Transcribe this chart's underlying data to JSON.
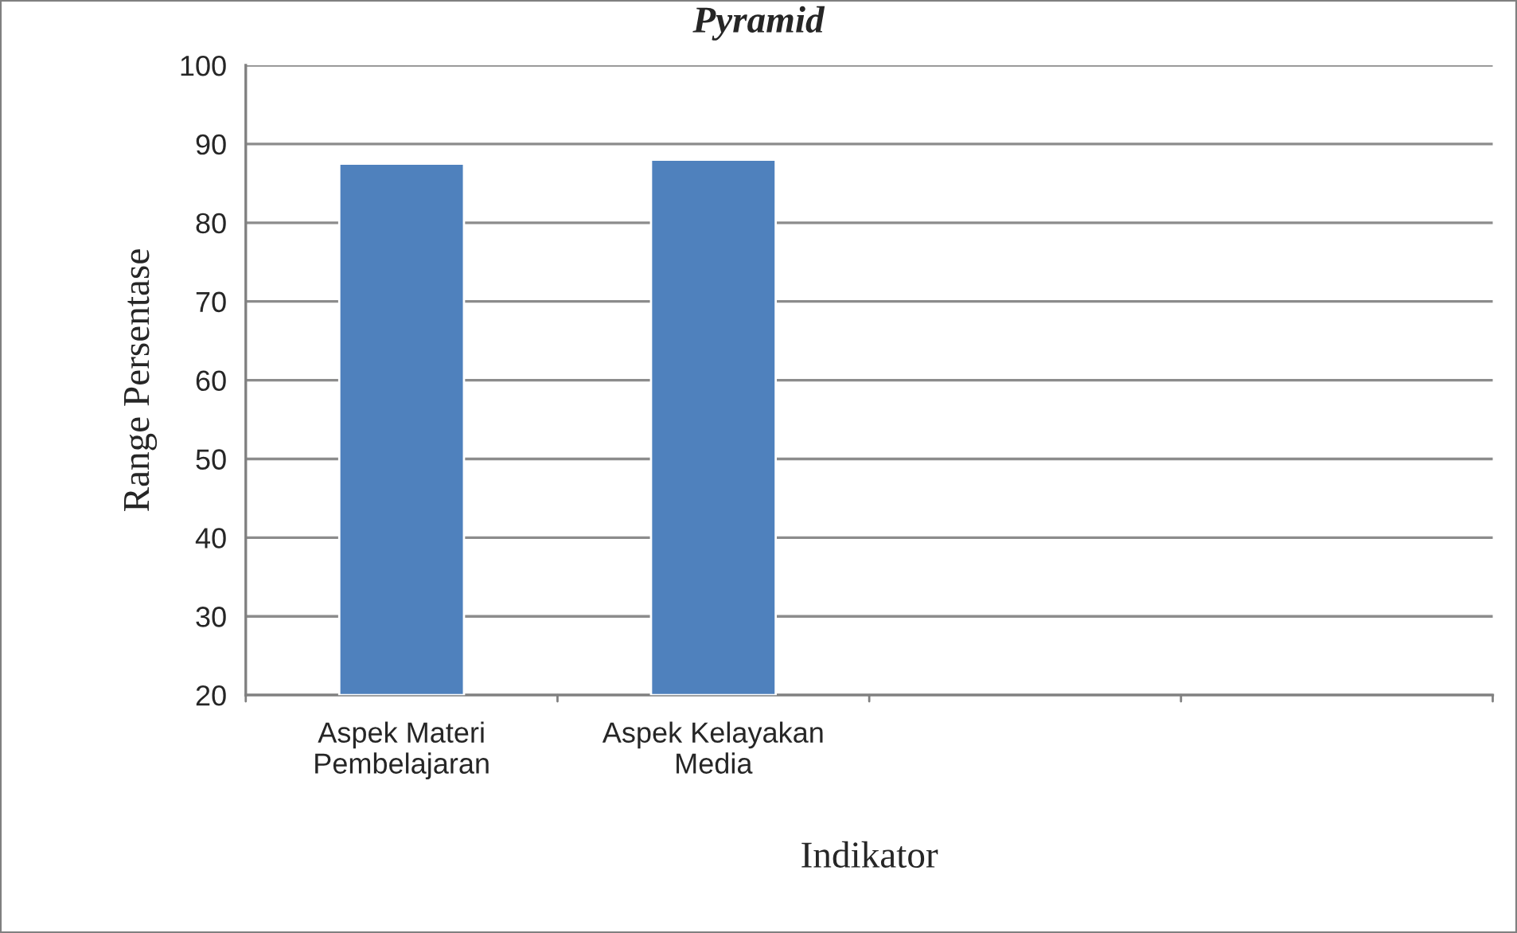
{
  "chart_data": {
    "type": "bar",
    "title": "Pyramid",
    "xlabel": "Indikator",
    "ylabel": "Range Persentase",
    "categories": [
      "Aspek Materi\nPembelajaran",
      "Aspek Kelayakan\nMedia",
      null,
      null
    ],
    "values": [
      87.5,
      88,
      null,
      null
    ],
    "color": "#4f81bd",
    "ylim": [
      20,
      100
    ],
    "yticks": [
      20,
      30,
      40,
      50,
      60,
      70,
      80,
      90,
      100
    ],
    "grid": "y",
    "legend": false
  }
}
